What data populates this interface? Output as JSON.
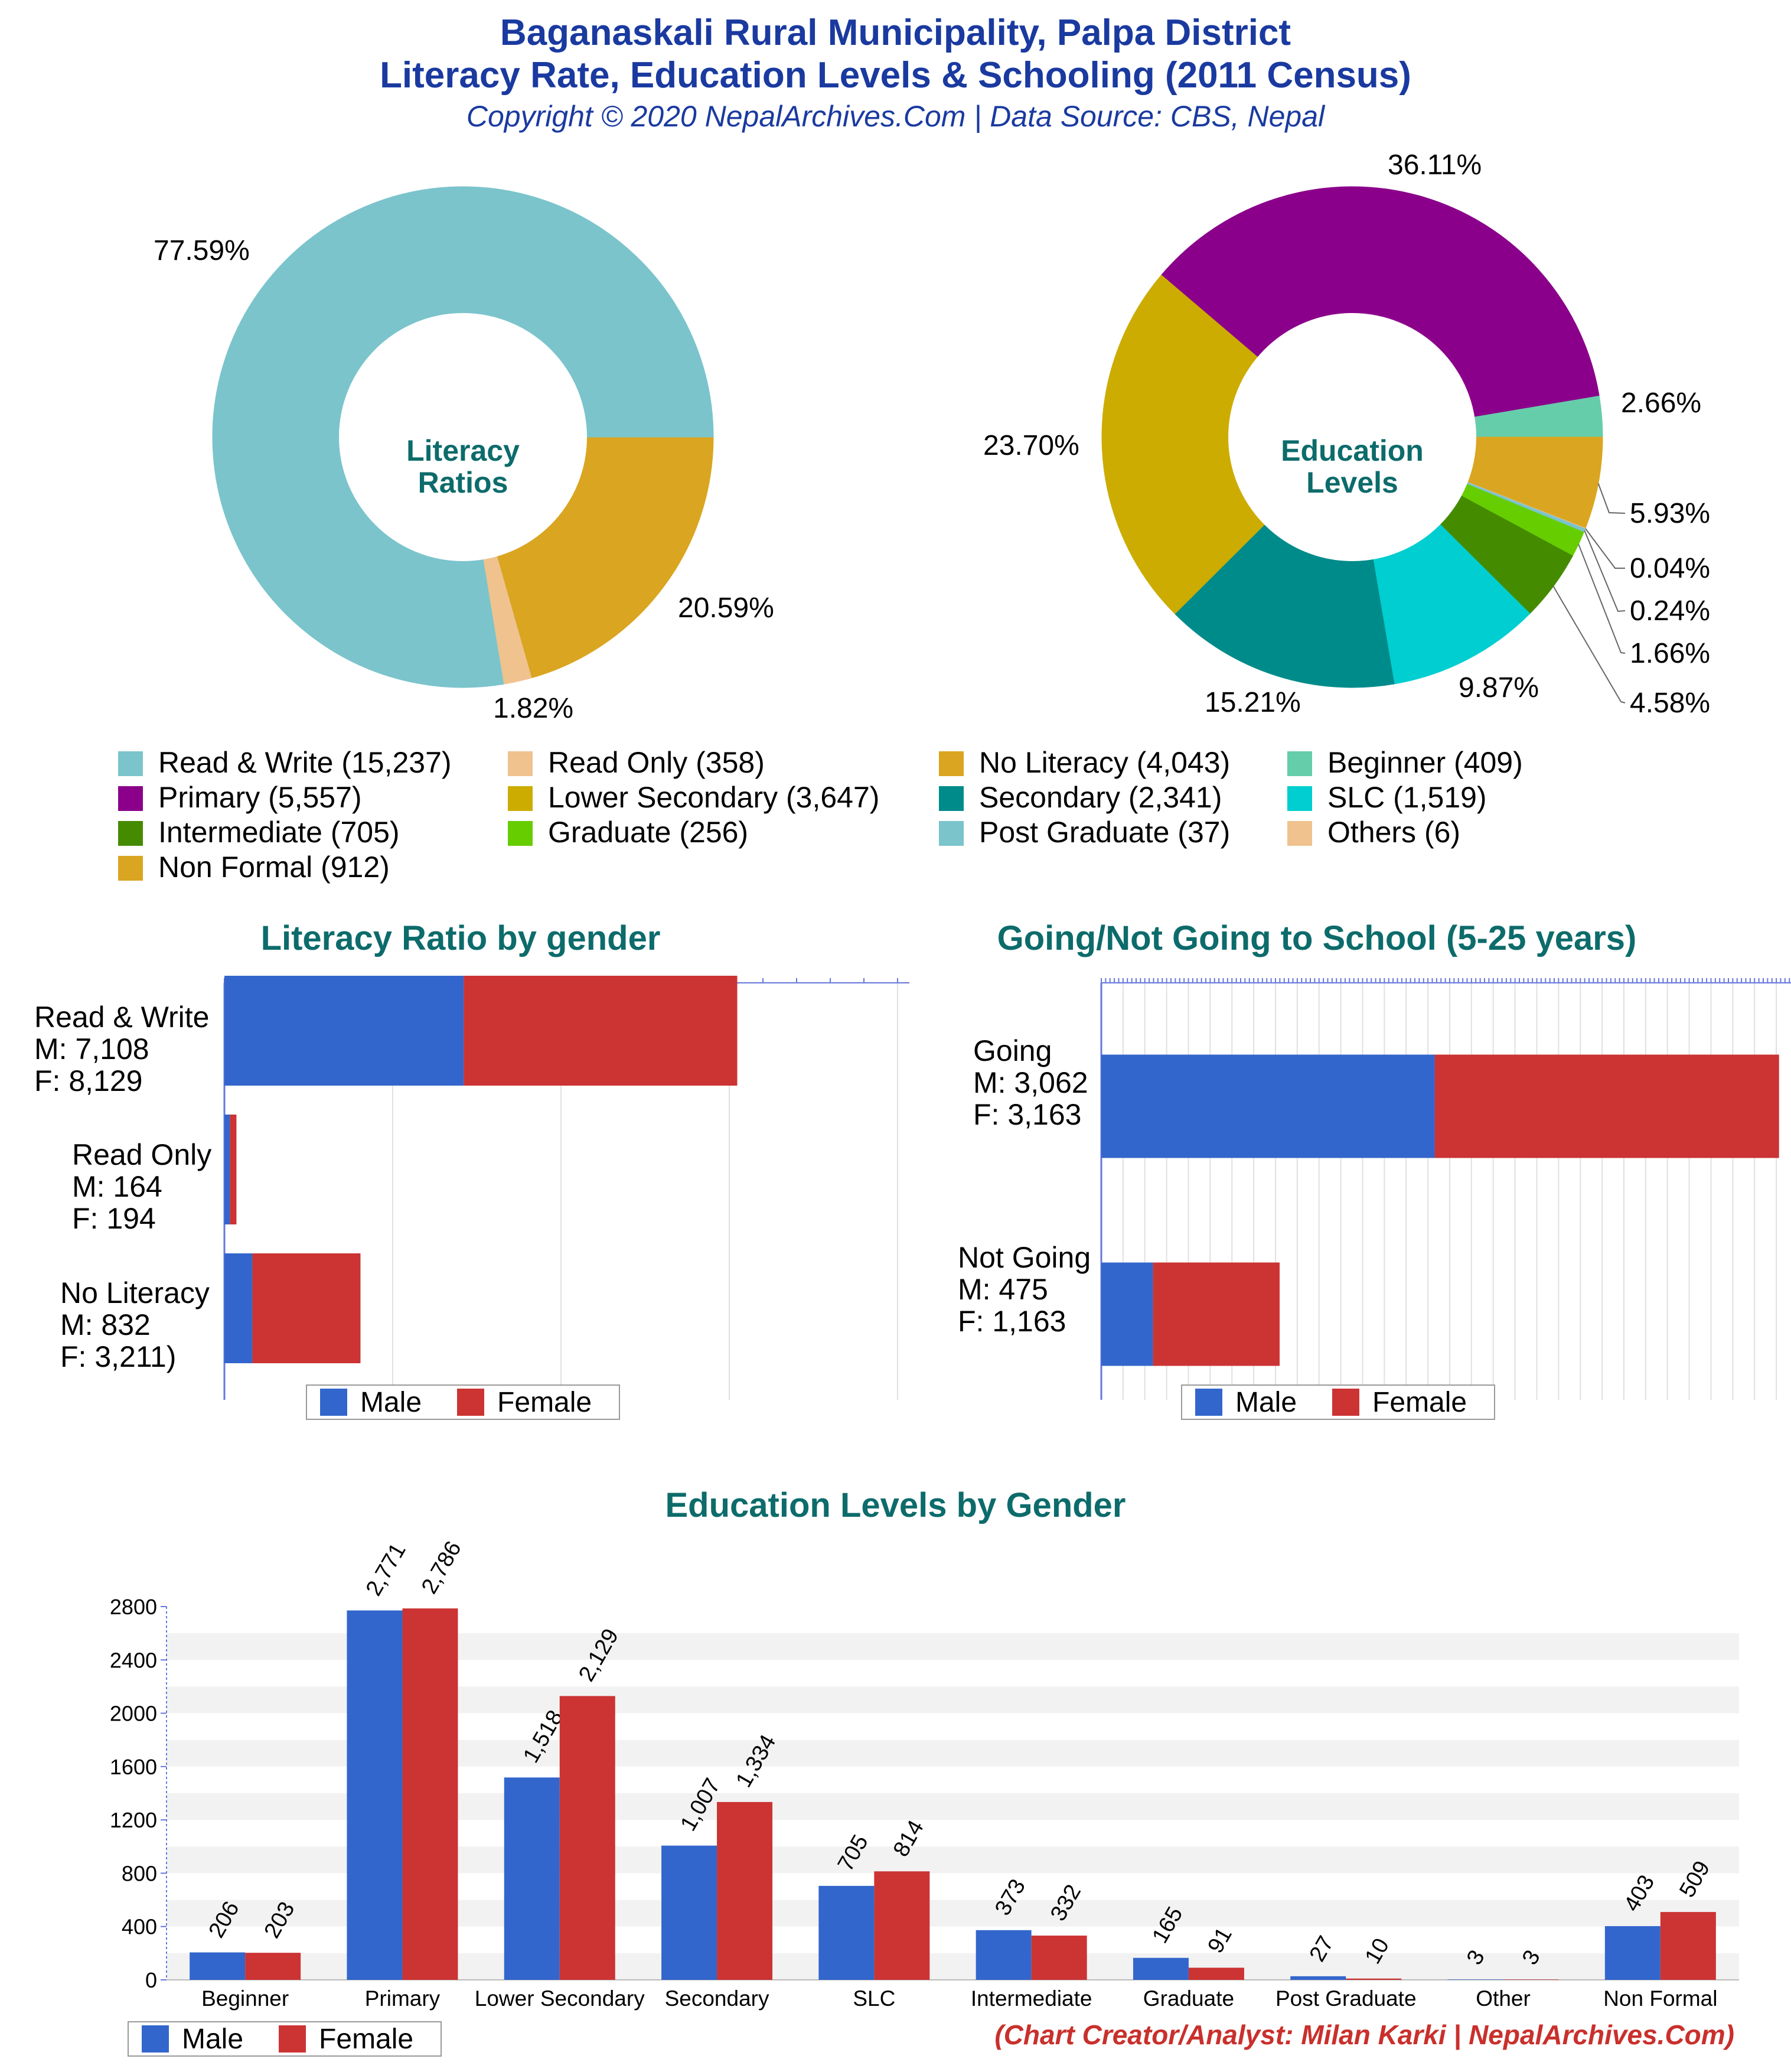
{
  "header": {
    "title_line1": "Baganaskali Rural Municipality, Palpa District",
    "title_line2": "Literacy Rate, Education Levels & Schooling (2011 Census)",
    "subtitle": "Copyright © 2020 NepalArchives.Com | Data Source: CBS, Nepal"
  },
  "credit": "(Chart Creator/Analyst: Milan Karki | NepalArchives.Com)",
  "legend_top": [
    {
      "label": "Read & Write (15,237)",
      "color": "#7bc4cc"
    },
    {
      "label": "Read Only (358)",
      "color": "#efc28e"
    },
    {
      "label": "No Literacy (4,043)",
      "color": "#daa520"
    },
    {
      "label": "Beginner (409)",
      "color": "#66cdaa"
    },
    {
      "label": "Primary (5,557)",
      "color": "#8b008b"
    },
    {
      "label": "Lower Secondary (3,647)",
      "color": "#ccac00"
    },
    {
      "label": "Secondary (2,341)",
      "color": "#008b8b"
    },
    {
      "label": "SLC (1,519)",
      "color": "#00ced1"
    },
    {
      "label": "Intermediate (705)",
      "color": "#458b00"
    },
    {
      "label": "Graduate (256)",
      "color": "#66cd00"
    },
    {
      "label": "Post Graduate (37)",
      "color": "#7bc4cc"
    },
    {
      "label": "Others (6)",
      "color": "#efc28e"
    },
    {
      "label": "Non Formal (912)",
      "color": "#daa520"
    }
  ],
  "bar_legend": {
    "male": "Male",
    "female": "Female",
    "male_color": "#3366cc",
    "female_color": "#cc3333"
  },
  "chart_data": [
    {
      "type": "pie",
      "title": "Literacy Ratios",
      "center_label": [
        "Literacy",
        "Ratios"
      ],
      "slices": [
        {
          "name": "Read & Write",
          "value": 15237,
          "pct_label": "77.59%",
          "color": "#7bc4cc"
        },
        {
          "name": "Read Only",
          "value": 358,
          "pct_label": "1.82%",
          "color": "#efc28e"
        },
        {
          "name": "No Literacy",
          "value": 4043,
          "pct_label": "20.59%",
          "color": "#daa520"
        }
      ]
    },
    {
      "type": "pie",
      "title": "Education Levels",
      "center_label": [
        "Education",
        "Levels"
      ],
      "slices": [
        {
          "name": "Beginner",
          "value": 409,
          "pct_label": "2.66%",
          "color": "#66cdaa"
        },
        {
          "name": "Non Formal",
          "value": 912,
          "pct_label": "5.93%",
          "color": "#daa520"
        },
        {
          "name": "Others",
          "value": 6,
          "pct_label": "0.04%",
          "color": "#efc28e"
        },
        {
          "name": "Post Graduate",
          "value": 37,
          "pct_label": "0.24%",
          "color": "#7bc4cc"
        },
        {
          "name": "Graduate",
          "value": 256,
          "pct_label": "1.66%",
          "color": "#66cd00"
        },
        {
          "name": "Intermediate",
          "value": 705,
          "pct_label": "4.58%",
          "color": "#458b00"
        },
        {
          "name": "SLC",
          "value": 1519,
          "pct_label": "9.87%",
          "color": "#00ced1"
        },
        {
          "name": "Secondary",
          "value": 2341,
          "pct_label": "15.21%",
          "color": "#008b8b"
        },
        {
          "name": "Lower Secondary",
          "value": 3647,
          "pct_label": "23.70%",
          "color": "#ccac00"
        },
        {
          "name": "Primary",
          "value": 5557,
          "pct_label": "36.11%",
          "color": "#8b008b"
        }
      ]
    },
    {
      "type": "bar",
      "orientation": "horizontal-stacked",
      "title": "Literacy Ratio by gender",
      "categories": [
        "Read & Write",
        "Read Only",
        "No Literacy"
      ],
      "category_labels": [
        "Read & Write\nM: 7,108\nF: 8,129",
        "Read Only\nM: 164\nF: 194",
        "No Literacy\nM: 832\nF: 3,211)"
      ],
      "series": [
        {
          "name": "Male",
          "values": [
            7108,
            164,
            832
          ]
        },
        {
          "name": "Female",
          "values": [
            8129,
            194,
            3211
          ]
        }
      ],
      "xlim": [
        0,
        20000
      ]
    },
    {
      "type": "bar",
      "orientation": "horizontal-stacked",
      "title": "Going/Not Going to School (5-25 years)",
      "categories": [
        "Going",
        "Not Going"
      ],
      "category_labels": [
        "Going\nM: 3,062\nF: 3,163",
        "Not Going\nM: 475\nF: 1,163"
      ],
      "series": [
        {
          "name": "Male",
          "values": [
            3062,
            475
          ]
        },
        {
          "name": "Female",
          "values": [
            3163,
            1163
          ]
        }
      ],
      "xlim": [
        0,
        6400
      ]
    },
    {
      "type": "bar",
      "title": "Education Levels by Gender",
      "categories": [
        "Beginner",
        "Primary",
        "Lower Secondary",
        "Secondary",
        "SLC",
        "Intermediate",
        "Graduate",
        "Post Graduate",
        "Other",
        "Non Formal"
      ],
      "series": [
        {
          "name": "Male",
          "values": [
            206,
            2771,
            1518,
            1007,
            705,
            373,
            165,
            27,
            3,
            403
          ],
          "labels": [
            "206",
            "2,771",
            "1,518",
            "1,007",
            "705",
            "373",
            "165",
            "27",
            "3",
            "403"
          ]
        },
        {
          "name": "Female",
          "values": [
            203,
            2786,
            2129,
            1334,
            814,
            332,
            91,
            10,
            3,
            509
          ],
          "labels": [
            "203",
            "2,786",
            "2,129",
            "1,334",
            "814",
            "332",
            "91",
            "10",
            "3",
            "509"
          ]
        }
      ],
      "yticks": [
        "0",
        "400",
        "800",
        "1200",
        "1600",
        "2000",
        "2400",
        "2800"
      ],
      "ylim": [
        0,
        2800
      ]
    }
  ]
}
